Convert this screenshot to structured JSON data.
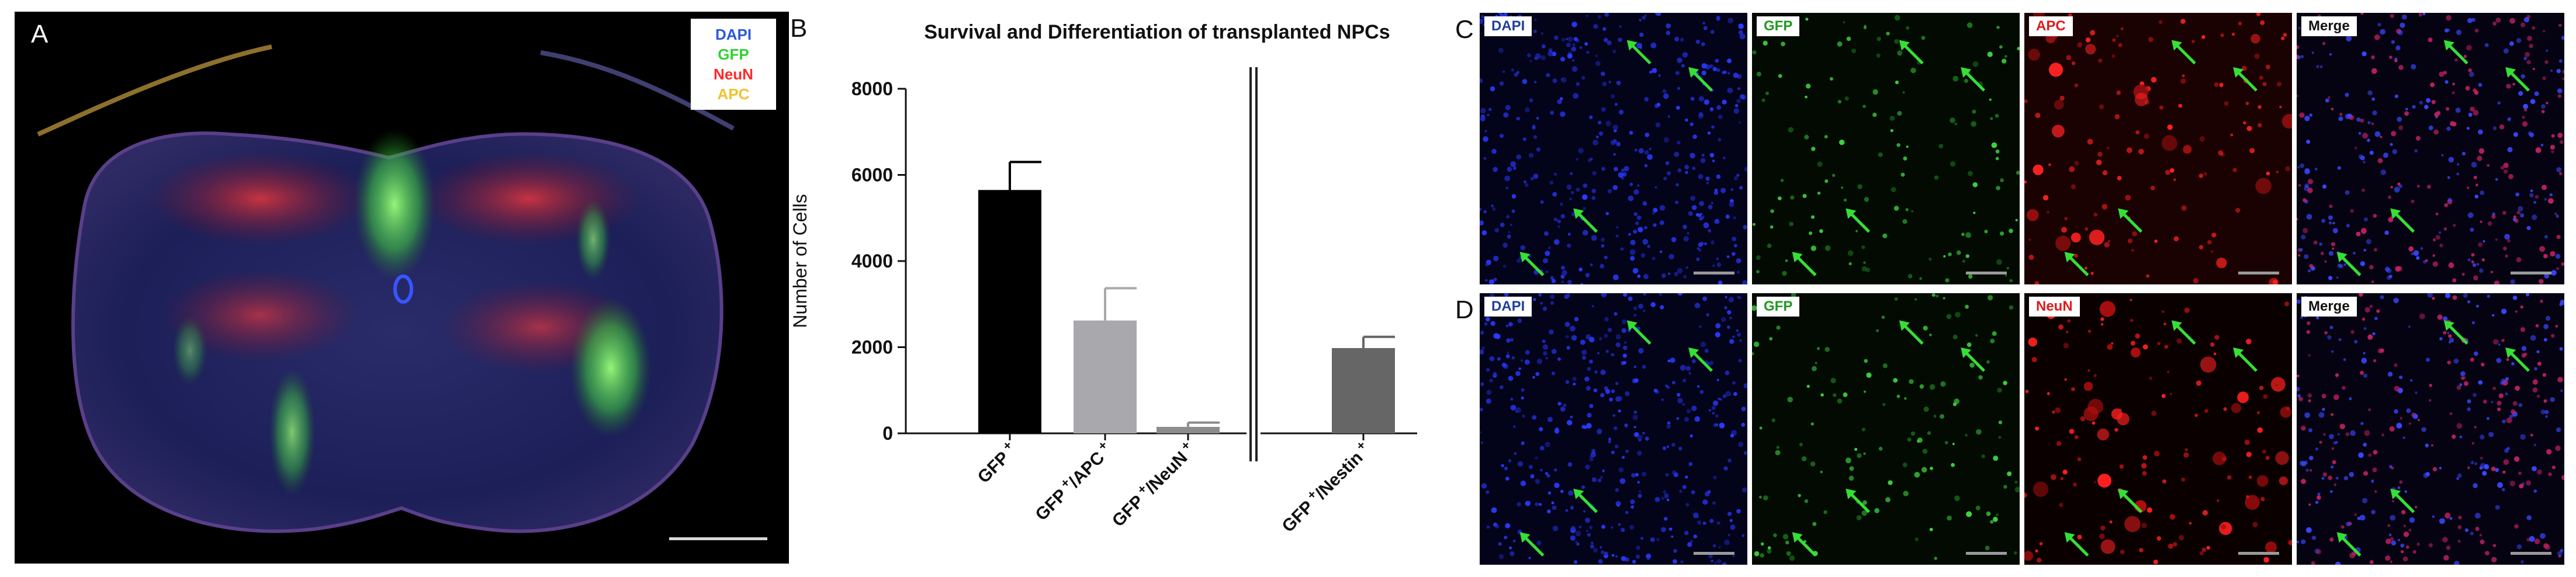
{
  "panel_a": {
    "letter": "A",
    "legend": [
      {
        "label": "DAPI",
        "color": "#2b5ad6"
      },
      {
        "label": "GFP",
        "color": "#2ed42e"
      },
      {
        "label": "NeuN",
        "color": "#ff2a2a"
      },
      {
        "label": "APC",
        "color": "#f2c12e"
      }
    ]
  },
  "panel_b_letter": "B",
  "chart_data": {
    "type": "bar",
    "title": "Survival and Differentiation of transplanted NPCs",
    "ylabel": "Number of Cells",
    "xlabel": "",
    "ylim": [
      0,
      8000
    ],
    "yticks": [
      0,
      2000,
      4000,
      6000,
      8000
    ],
    "ytick_labels": [
      "0",
      "2000",
      "4000",
      "6000",
      "8000"
    ],
    "categories": [
      {
        "base": "GFP",
        "sup1": "+",
        "mid": "",
        "sup2": ""
      },
      {
        "base": "GFP",
        "sup1": "+",
        "mid": "/APC",
        "sup2": "+"
      },
      {
        "base": "GFP",
        "sup1": "+",
        "mid": "/NeuN",
        "sup2": "+"
      },
      {
        "base": "GFP",
        "sup1": "+",
        "mid": "/Nestin",
        "sup2": "+"
      }
    ],
    "values": [
      5650,
      2620,
      150,
      1980
    ],
    "errors": [
      650,
      750,
      100,
      260
    ],
    "bar_colors": [
      "#000000",
      "#a9a9ad",
      "#8c8c8c",
      "#666666"
    ],
    "axis_break_after_index": 2
  },
  "panel_c": {
    "letter": "C",
    "tiles": [
      {
        "label": "DAPI",
        "color": "#1f3f9a"
      },
      {
        "label": "GFP",
        "color": "#1f9a1f"
      },
      {
        "label": "APC",
        "color": "#e01b1b"
      },
      {
        "label": "Merge",
        "color": "#111111"
      }
    ]
  },
  "panel_d": {
    "letter": "D",
    "tiles": [
      {
        "label": "DAPI",
        "color": "#1f3f9a"
      },
      {
        "label": "GFP",
        "color": "#1f9a1f"
      },
      {
        "label": "NeuN",
        "color": "#e01b1b"
      },
      {
        "label": "Merge",
        "color": "#111111"
      }
    ]
  }
}
